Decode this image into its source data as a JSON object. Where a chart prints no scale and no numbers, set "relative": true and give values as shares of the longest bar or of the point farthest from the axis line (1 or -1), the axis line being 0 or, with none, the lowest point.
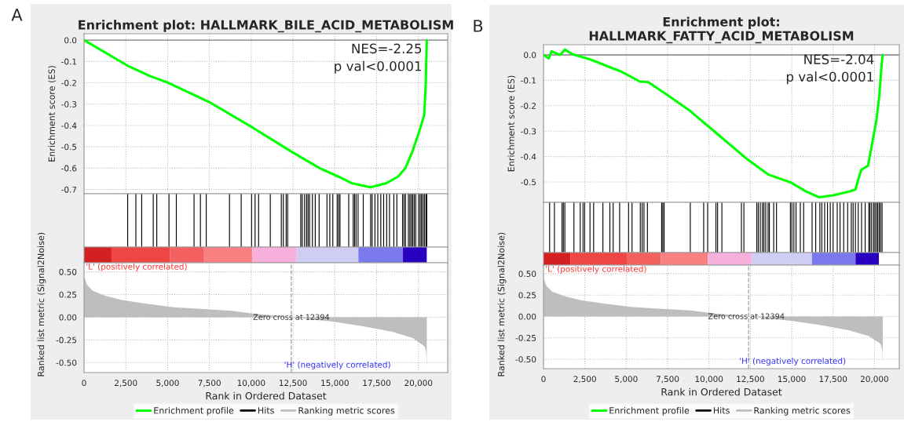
{
  "chart_data": [
    {
      "type": "line",
      "title": "Enrichment plot: HALLMARK_BILE_ACID_METABOLISM",
      "ylabel": "Enrichment score (ES)",
      "annotations": [
        "A",
        "NES=-2.25",
        "p val<0.0001"
      ],
      "x": [
        0,
        2610,
        3990,
        5040,
        7480,
        10090,
        12350,
        14090,
        15220,
        16000,
        17130,
        18090,
        18780,
        19220,
        19650,
        20000,
        20350,
        20440,
        20500
      ],
      "series": [
        {
          "name": "Enrichment profile",
          "color": "#00ff00",
          "values": [
            0,
            -0.12,
            -0.17,
            -0.2,
            -0.29,
            -0.41,
            -0.52,
            -0.6,
            -0.64,
            -0.67,
            -0.69,
            -0.67,
            -0.64,
            -0.6,
            -0.52,
            -0.44,
            -0.35,
            -0.2,
            0
          ]
        }
      ],
      "xlim": [
        0,
        21750
      ],
      "xticks": [
        {
          "value": 0,
          "label": null
        },
        {
          "value": 2500,
          "label": null
        },
        {
          "value": 5000,
          "label": null
        },
        {
          "value": 7500,
          "label": null
        },
        {
          "value": 10000,
          "label": null
        },
        {
          "value": 12500,
          "label": null
        },
        {
          "value": 15000,
          "label": null
        },
        {
          "value": 17500,
          "label": null
        },
        {
          "value": 20000,
          "label": null
        }
      ],
      "ylim": [
        -0.72,
        0.03
      ],
      "yticks": [
        {
          "value": 0,
          "label": "0.0"
        },
        -0.1,
        -0.2,
        -0.3,
        -0.4,
        -0.5,
        -0.6,
        -0.7
      ],
      "ref_lines": [
        {
          "axis": "y",
          "value": 0,
          "color": "#808080",
          "line_style": "solid"
        }
      ],
      "tick_labels": "y",
      "grid": true,
      "line_style": "solid"
    },
    {
      "type": "bar",
      "relative": true,
      "tick_labels": false,
      "xlim": [
        0,
        21750
      ],
      "x": [
        2610,
        3100,
        3450,
        4140,
        4350,
        5080,
        5520,
        6580,
        6960,
        7310,
        8700,
        9400,
        10020,
        10230,
        10440,
        11140,
        11800,
        11920,
        12090,
        12180,
        12960,
        13050,
        13190,
        13310,
        13400,
        13490,
        13660,
        13830,
        14060,
        14530,
        14700,
        14880,
        15140,
        15230,
        15310,
        15830,
        16100,
        16180,
        16270,
        16390,
        16700,
        17140,
        17230,
        17400,
        17570,
        17750,
        17920,
        18100,
        18270,
        18530,
        18710,
        19050,
        19140,
        19230,
        19400,
        19490,
        19580,
        19660,
        19750,
        19840,
        20010,
        20100,
        20180,
        20270,
        20360,
        20450,
        20500
      ],
      "series": [
        {
          "name": "Hits",
          "color": "#000000",
          "values": [
            1,
            1,
            1,
            1,
            1,
            1,
            1,
            1,
            1,
            1,
            1,
            1,
            1,
            1,
            1,
            1,
            1,
            1,
            1,
            1,
            1,
            1,
            1,
            1,
            1,
            1,
            1,
            1,
            1,
            1,
            1,
            1,
            1,
            1,
            1,
            1,
            1,
            1,
            1,
            1,
            1,
            1,
            1,
            1,
            1,
            1,
            1,
            1,
            1,
            1,
            1,
            1,
            1,
            1,
            1,
            1,
            1,
            1,
            1,
            1,
            1,
            1,
            1,
            1,
            1,
            1,
            1
          ]
        }
      ]
    },
    {
      "type": "area",
      "xlabel": "Rank in Ordered Dataset",
      "ylabel": "Ranked list metric (Signal2Noise)",
      "annotations": [
        "Zero cross at 12394",
        "'L' (positively correlated)",
        "'H' (negatively correlated)"
      ],
      "x": [
        0,
        170,
        520,
        1220,
        2260,
        3650,
        5390,
        7130,
        8870,
        10090,
        12394,
        14960,
        16700,
        18440,
        19660,
        20360,
        20440,
        20480,
        20500
      ],
      "series": [
        {
          "name": "Ranking metric scores",
          "color": "#bebebe",
          "values": [
            0.45,
            0.36,
            0.29,
            0.24,
            0.19,
            0.15,
            0.11,
            0.09,
            0.07,
            0.04,
            0,
            -0.05,
            -0.1,
            -0.16,
            -0.23,
            -0.32,
            -0.36,
            -0.42,
            -0.55
          ]
        }
      ],
      "xlim": [
        0,
        21750
      ],
      "xticks": [
        0,
        {
          "value": 2500,
          "label": "2,500"
        },
        {
          "value": 5000,
          "label": "5,000"
        },
        {
          "value": 7500,
          "label": "7,500"
        },
        {
          "value": 10000,
          "label": "10,000"
        },
        {
          "value": 12500,
          "label": "12,500"
        },
        {
          "value": 15000,
          "label": "15,000"
        },
        {
          "value": 17500,
          "label": "17,500"
        },
        {
          "value": 20000,
          "label": "20,000"
        }
      ],
      "ylim": [
        -0.61,
        0.6
      ],
      "yticks": [
        {
          "value": 0.5,
          "label": "0.50"
        },
        {
          "value": 0.25,
          "label": "0.25"
        },
        {
          "value": 0,
          "label": "0.00"
        },
        {
          "value": -0.25,
          "label": "-0.25"
        },
        {
          "value": -0.5,
          "label": "-0.50"
        }
      ],
      "ref_lines": [
        {
          "axis": "x",
          "value": 12394,
          "color": "#aaaaaa",
          "line_style": "dashed"
        }
      ],
      "grid": true,
      "legend": "bottom"
    },
    {
      "type": "line",
      "title": "Enrichment plot:\nHALLMARK_FATTY_ACID_METABOLISM",
      "ylabel": "Enrichment score (ES)",
      "annotations": [
        "B",
        "NES=-2.04",
        "p val<0.0001"
      ],
      "x": [
        0,
        320,
        490,
        1000,
        1290,
        1760,
        2780,
        3960,
        4640,
        5820,
        6330,
        7340,
        8870,
        10560,
        12250,
        13600,
        14960,
        15800,
        16650,
        17500,
        18510,
        18850,
        19190,
        19610,
        19860,
        20120,
        20290,
        20410,
        20490
      ],
      "series": [
        {
          "name": "Enrichment profile",
          "color": "#00ff00",
          "values": [
            0,
            -0.014,
            0.014,
            0,
            0.021,
            0.002,
            -0.017,
            -0.047,
            -0.064,
            -0.105,
            -0.107,
            -0.151,
            -0.221,
            -0.314,
            -0.407,
            -0.471,
            -0.502,
            -0.535,
            -0.56,
            -0.552,
            -0.537,
            -0.529,
            -0.453,
            -0.436,
            -0.349,
            -0.256,
            -0.163,
            -0.058,
            0
          ]
        }
      ],
      "xlim": [
        0,
        21500
      ],
      "xticks": [
        {
          "value": 0,
          "label": null
        },
        {
          "value": 2500,
          "label": null
        },
        {
          "value": 5000,
          "label": null
        },
        {
          "value": 7500,
          "label": null
        },
        {
          "value": 10000,
          "label": null
        },
        {
          "value": 12500,
          "label": null
        },
        {
          "value": 15000,
          "label": null
        },
        {
          "value": 17500,
          "label": null
        },
        {
          "value": 20000,
          "label": null
        }
      ],
      "ylim": [
        -0.58,
        0.04
      ],
      "yticks": [
        {
          "value": 0,
          "label": "0.0"
        },
        -0.1,
        -0.2,
        -0.3,
        -0.4,
        -0.5
      ],
      "ref_lines": [
        {
          "axis": "y",
          "value": 0,
          "color": "#808080",
          "line_style": "solid"
        }
      ],
      "tick_labels": "y",
      "grid": true,
      "line_style": "solid"
    },
    {
      "type": "bar",
      "relative": true,
      "tick_labels": false,
      "xlim": [
        0,
        21500
      ],
      "x": [
        370,
        660,
        1120,
        1200,
        1290,
        1840,
        2220,
        2390,
        2490,
        2810,
        3030,
        3590,
        4010,
        4210,
        4600,
        5140,
        5350,
        5850,
        5960,
        6070,
        6280,
        7140,
        7210,
        7290,
        8870,
        9680,
        9920,
        10420,
        10520,
        10780,
        11960,
        12110,
        12890,
        12980,
        13100,
        13230,
        13320,
        13430,
        13570,
        13650,
        13910,
        14080,
        14920,
        15010,
        15130,
        15260,
        15520,
        15720,
        16230,
        16450,
        16700,
        16820,
        16990,
        17160,
        17330,
        17500,
        17750,
        17920,
        18140,
        18380,
        18600,
        18710,
        18850,
        19020,
        19220,
        19440,
        19660,
        19730,
        19830,
        19950,
        20030,
        20120,
        20200,
        20290,
        20370,
        20460
      ],
      "series": [
        {
          "name": "Hits",
          "color": "#000000",
          "values": [
            1,
            1,
            1,
            1,
            1,
            1,
            1,
            1,
            1,
            1,
            1,
            1,
            1,
            1,
            1,
            1,
            1,
            1,
            1,
            1,
            1,
            1,
            1,
            1,
            1,
            1,
            1,
            1,
            1,
            1,
            1,
            1,
            1,
            1,
            1,
            1,
            1,
            1,
            1,
            1,
            1,
            1,
            1,
            1,
            1,
            1,
            1,
            1,
            1,
            1,
            1,
            1,
            1,
            1,
            1,
            1,
            1,
            1,
            1,
            1,
            1,
            1,
            1,
            1,
            1,
            1,
            1,
            1,
            1,
            1,
            1,
            1,
            1,
            1,
            1,
            1
          ]
        }
      ]
    },
    {
      "type": "area",
      "xlabel": "Rank in Ordered Dataset",
      "ylabel": "Ranked list metric (Signal2Noise)",
      "annotations": [
        "Zero cross at 12394",
        "'L' (positively correlated)",
        "'H' (negatively correlated)"
      ],
      "x": [
        0,
        170,
        520,
        1220,
        2260,
        3650,
        5390,
        7130,
        8870,
        10090,
        12394,
        14960,
        16700,
        18440,
        19660,
        20360,
        20440,
        20480,
        20500
      ],
      "series": [
        {
          "name": "Ranking metric scores",
          "color": "#bebebe",
          "values": [
            0.45,
            0.36,
            0.29,
            0.24,
            0.19,
            0.15,
            0.11,
            0.09,
            0.07,
            0.04,
            0,
            -0.05,
            -0.1,
            -0.16,
            -0.23,
            -0.32,
            -0.36,
            -0.42,
            -0.55
          ]
        }
      ],
      "xlim": [
        0,
        21500
      ],
      "xticks": [
        0,
        {
          "value": 2500,
          "label": "2,500"
        },
        {
          "value": 5000,
          "label": "5,000"
        },
        {
          "value": 7500,
          "label": "7,500"
        },
        {
          "value": 10000,
          "label": "10,000"
        },
        {
          "value": 12500,
          "label": "12,500"
        },
        {
          "value": 15000,
          "label": "15,000"
        },
        {
          "value": 17500,
          "label": "17,500"
        },
        {
          "value": 20000,
          "label": "20,000"
        }
      ],
      "ylim": [
        -0.61,
        0.6
      ],
      "yticks": [
        {
          "value": 0.5,
          "label": "0.50"
        },
        {
          "value": 0.25,
          "label": "0.25"
        },
        {
          "value": 0,
          "label": "0.00"
        },
        {
          "value": -0.25,
          "label": "-0.25"
        },
        {
          "value": -0.5,
          "label": "-0.50"
        }
      ],
      "ref_lines": [
        {
          "axis": "x",
          "value": 12394,
          "color": "#aaaaaa",
          "line_style": "dashed"
        }
      ],
      "grid": true,
      "legend": "bottom"
    }
  ]
}
